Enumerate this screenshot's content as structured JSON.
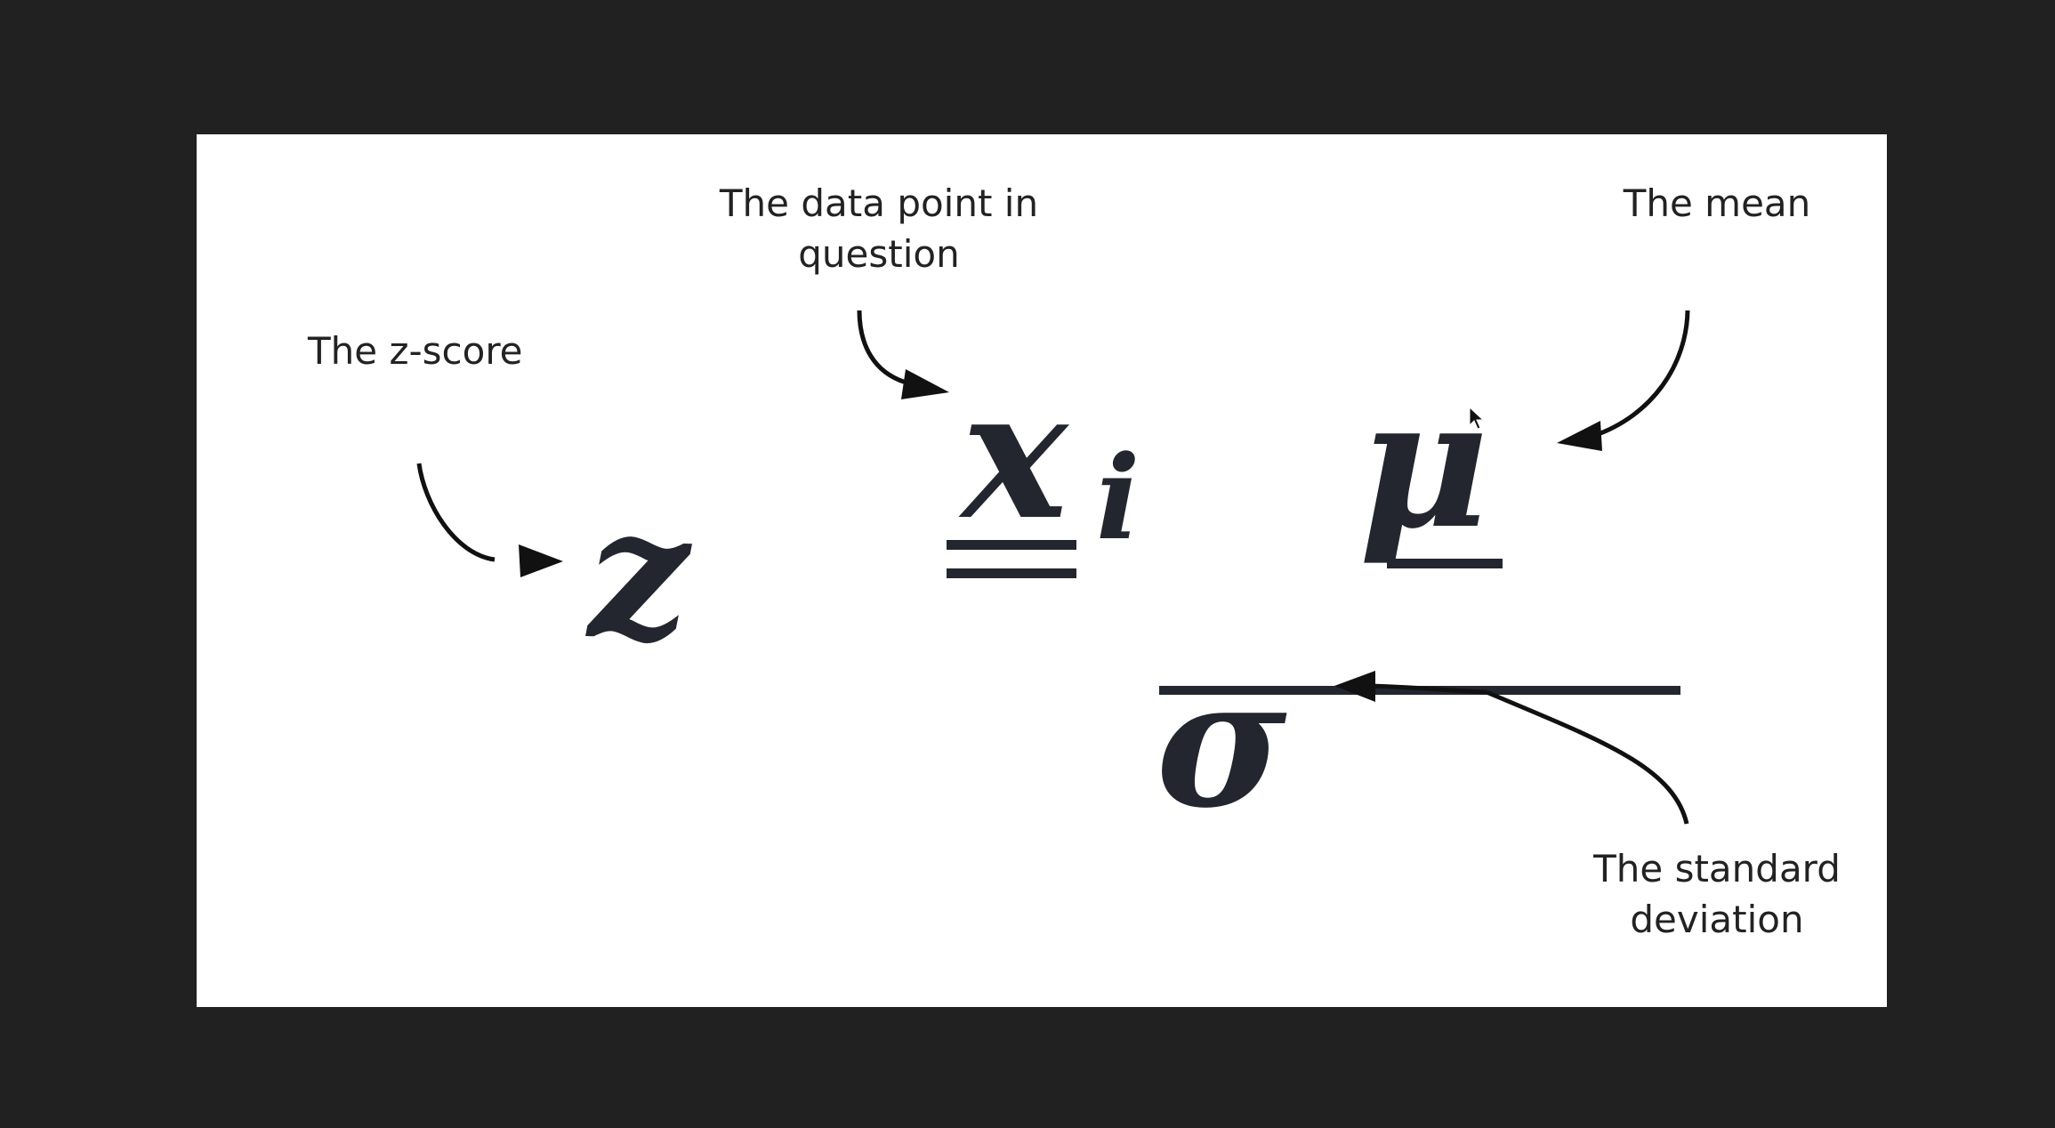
{
  "labels": {
    "z_score": "The z-score",
    "data_point_line1": "The data point in",
    "data_point_line2": "question",
    "mean": "The mean",
    "std_dev_line1": "The standard",
    "std_dev_line2": "deviation"
  },
  "formula": {
    "lhs": "z",
    "numerator_var": "x",
    "numerator_sub": "i",
    "numerator_mean": "μ",
    "denominator": "σ"
  },
  "colors": {
    "background": "#212121",
    "slide": "#ffffff",
    "ink": "#23262f",
    "text": "#222222"
  },
  "icons": [
    "arrow-icon",
    "mouse-cursor-icon"
  ]
}
